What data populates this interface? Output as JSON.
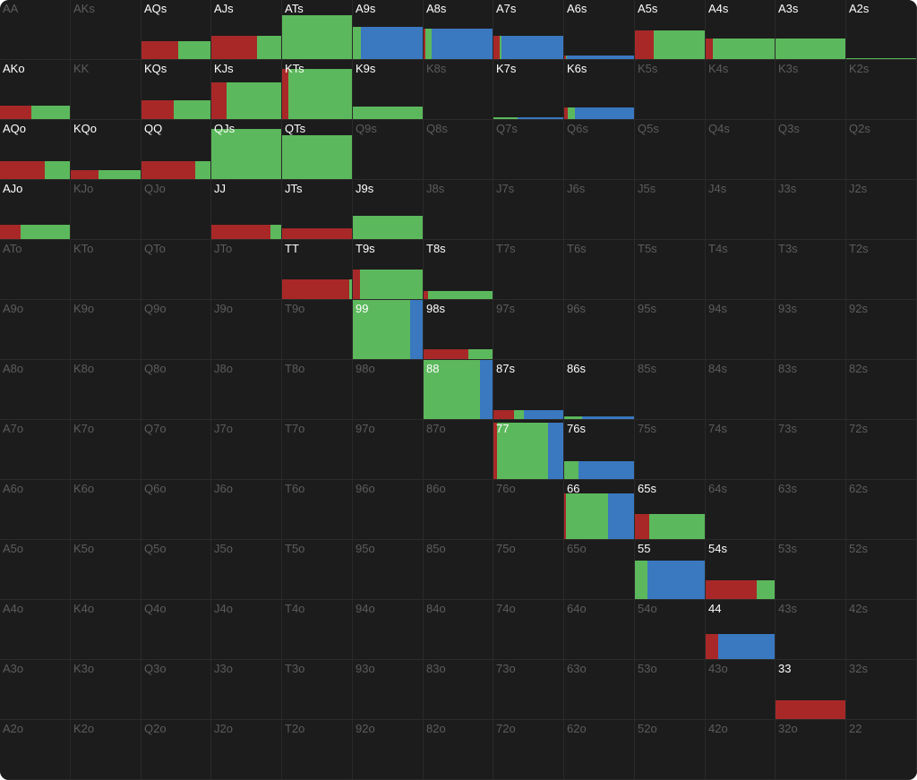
{
  "colors": {
    "raise": "#a82828",
    "call": "#5cb85c",
    "allin": "#3a78c0",
    "active_label": "#ffffff",
    "inactive_label": "#5c5c5c",
    "cell_bg": "#1c1c1c",
    "grid_line": "#2a2a2a"
  },
  "hands": [
    [
      "AA",
      "AKs",
      "AQs",
      "AJs",
      "ATs",
      "A9s",
      "A8s",
      "A7s",
      "A6s",
      "A5s",
      "A4s",
      "A3s",
      "A2s"
    ],
    [
      "AKo",
      "KK",
      "KQs",
      "KJs",
      "KTs",
      "K9s",
      "K8s",
      "K7s",
      "K6s",
      "K5s",
      "K4s",
      "K3s",
      "K2s"
    ],
    [
      "AQo",
      "KQo",
      "QQ",
      "QJs",
      "QTs",
      "Q9s",
      "Q8s",
      "Q7s",
      "Q6s",
      "Q5s",
      "Q4s",
      "Q3s",
      "Q2s"
    ],
    [
      "AJo",
      "KJo",
      "QJo",
      "JJ",
      "JTs",
      "J9s",
      "J8s",
      "J7s",
      "J6s",
      "J5s",
      "J4s",
      "J3s",
      "J2s"
    ],
    [
      "ATo",
      "KTo",
      "QTo",
      "JTo",
      "TT",
      "T9s",
      "T8s",
      "T7s",
      "T6s",
      "T5s",
      "T4s",
      "T3s",
      "T2s"
    ],
    [
      "A9o",
      "K9o",
      "Q9o",
      "J9o",
      "T9o",
      "99",
      "98s",
      "97s",
      "96s",
      "95s",
      "94s",
      "93s",
      "92s"
    ],
    [
      "A8o",
      "K8o",
      "Q8o",
      "J8o",
      "T8o",
      "98o",
      "88",
      "87s",
      "86s",
      "85s",
      "84s",
      "83s",
      "82s"
    ],
    [
      "A7o",
      "K7o",
      "Q7o",
      "J7o",
      "T7o",
      "97o",
      "87o",
      "77",
      "76s",
      "75s",
      "74s",
      "73s",
      "72s"
    ],
    [
      "A6o",
      "K6o",
      "Q6o",
      "J6o",
      "T6o",
      "96o",
      "86o",
      "76o",
      "66",
      "65s",
      "64s",
      "63s",
      "62s"
    ],
    [
      "A5o",
      "K5o",
      "Q5o",
      "J5o",
      "T5o",
      "95o",
      "85o",
      "75o",
      "65o",
      "55",
      "54s",
      "53s",
      "52s"
    ],
    [
      "A4o",
      "K4o",
      "Q4o",
      "J4o",
      "T4o",
      "94o",
      "84o",
      "74o",
      "64o",
      "54o",
      "44",
      "43s",
      "42s"
    ],
    [
      "A3o",
      "K3o",
      "Q3o",
      "J3o",
      "T3o",
      "93o",
      "83o",
      "73o",
      "63o",
      "53o",
      "43o",
      "33",
      "32s"
    ],
    [
      "A2o",
      "K2o",
      "Q2o",
      "J2o",
      "T2o",
      "92o",
      "82o",
      "72o",
      "62o",
      "52o",
      "42o",
      "32o",
      "22"
    ]
  ],
  "strategy": {
    "AQs": {
      "freq": 0.3,
      "raise": 0.53,
      "call": 0.47,
      "allin": 0
    },
    "AJs": {
      "freq": 0.4,
      "raise": 0.66,
      "call": 0.34,
      "allin": 0
    },
    "ATs": {
      "freq": 0.75,
      "raise": 0,
      "call": 1.0,
      "allin": 0
    },
    "A9s": {
      "freq": 0.55,
      "raise": 0,
      "call": 0.11,
      "allin": 0.89
    },
    "A8s": {
      "freq": 0.52,
      "raise": 0.02,
      "call": 0.1,
      "allin": 0.88
    },
    "A7s": {
      "freq": 0.4,
      "raise": 0.09,
      "call": 0.02,
      "allin": 0.89
    },
    "A6s": {
      "freq": 0.06,
      "raise": 0.02,
      "call": 0.02,
      "allin": 0.96
    },
    "A5s": {
      "freq": 0.48,
      "raise": 0.27,
      "call": 0.73,
      "allin": 0
    },
    "A4s": {
      "freq": 0.35,
      "raise": 0.1,
      "call": 0.9,
      "allin": 0
    },
    "A3s": {
      "freq": 0.35,
      "raise": 0,
      "call": 1.0,
      "allin": 0
    },
    "A2s": {
      "freq": 0.02,
      "raise": 0,
      "call": 1.0,
      "allin": 0
    },
    "AKo": {
      "freq": 0.22,
      "raise": 0.45,
      "call": 0.55,
      "allin": 0
    },
    "KQs": {
      "freq": 0.32,
      "raise": 0.47,
      "call": 0.53,
      "allin": 0
    },
    "KJs": {
      "freq": 0.62,
      "raise": 0.22,
      "call": 0.78,
      "allin": 0
    },
    "KTs": {
      "freq": 0.85,
      "raise": 0.09,
      "call": 0.91,
      "allin": 0
    },
    "K9s": {
      "freq": 0.21,
      "raise": 0,
      "call": 1.0,
      "allin": 0
    },
    "K7s": {
      "freq": 0.03,
      "raise": 0,
      "call": 0.35,
      "allin": 0.65
    },
    "K6s": {
      "freq": 0.2,
      "raise": 0.05,
      "call": 0.1,
      "allin": 0.85
    },
    "AQo": {
      "freq": 0.3,
      "raise": 0.64,
      "call": 0.36,
      "allin": 0
    },
    "KQo": {
      "freq": 0.15,
      "raise": 0.4,
      "call": 0.6,
      "allin": 0
    },
    "QQ": {
      "freq": 0.3,
      "raise": 0.78,
      "call": 0.22,
      "allin": 0
    },
    "QJs": {
      "freq": 0.85,
      "raise": 0,
      "call": 1.0,
      "allin": 0
    },
    "QTs": {
      "freq": 0.75,
      "raise": 0,
      "call": 1.0,
      "allin": 0
    },
    "AJo": {
      "freq": 0.25,
      "raise": 0.29,
      "call": 0.71,
      "allin": 0
    },
    "JJ": {
      "freq": 0.24,
      "raise": 0.85,
      "call": 0.15,
      "allin": 0
    },
    "JTs": {
      "freq": 0.18,
      "raise": 1.0,
      "call": 0,
      "allin": 0
    },
    "J9s": {
      "freq": 0.4,
      "raise": 0,
      "call": 1.0,
      "allin": 0
    },
    "TT": {
      "freq": 0.33,
      "raise": 0.96,
      "call": 0.04,
      "allin": 0
    },
    "T9s": {
      "freq": 0.5,
      "raise": 0.1,
      "call": 0.9,
      "allin": 0
    },
    "T8s": {
      "freq": 0.13,
      "raise": 0.07,
      "call": 0.93,
      "allin": 0
    },
    "99": {
      "freq": 1.0,
      "raise": 0,
      "call": 0.82,
      "allin": 0.18
    },
    "98s": {
      "freq": 0.16,
      "raise": 0.65,
      "call": 0.35,
      "allin": 0
    },
    "88": {
      "freq": 1.0,
      "raise": 0,
      "call": 0.82,
      "allin": 0.18
    },
    "87s": {
      "freq": 0.15,
      "raise": 0.3,
      "call": 0.13,
      "allin": 0.57
    },
    "86s": {
      "freq": 0.04,
      "raise": 0,
      "call": 0.25,
      "allin": 0.75
    },
    "77": {
      "freq": 0.95,
      "raise": 0.05,
      "call": 0.73,
      "allin": 0.22
    },
    "76s": {
      "freq": 0.3,
      "raise": 0,
      "call": 0.2,
      "allin": 0.8
    },
    "66": {
      "freq": 0.77,
      "raise": 0.03,
      "call": 0.6,
      "allin": 0.37
    },
    "65s": {
      "freq": 0.42,
      "raise": 0.21,
      "call": 0.79,
      "allin": 0
    },
    "55": {
      "freq": 0.65,
      "raise": 0,
      "call": 0.18,
      "allin": 0.82
    },
    "54s": {
      "freq": 0.32,
      "raise": 0.74,
      "call": 0.26,
      "allin": 0
    },
    "44": {
      "freq": 0.42,
      "raise": 0.18,
      "call": 0,
      "allin": 0.82
    },
    "33": {
      "freq": 0.32,
      "raise": 1.0,
      "call": 0,
      "allin": 0
    }
  }
}
